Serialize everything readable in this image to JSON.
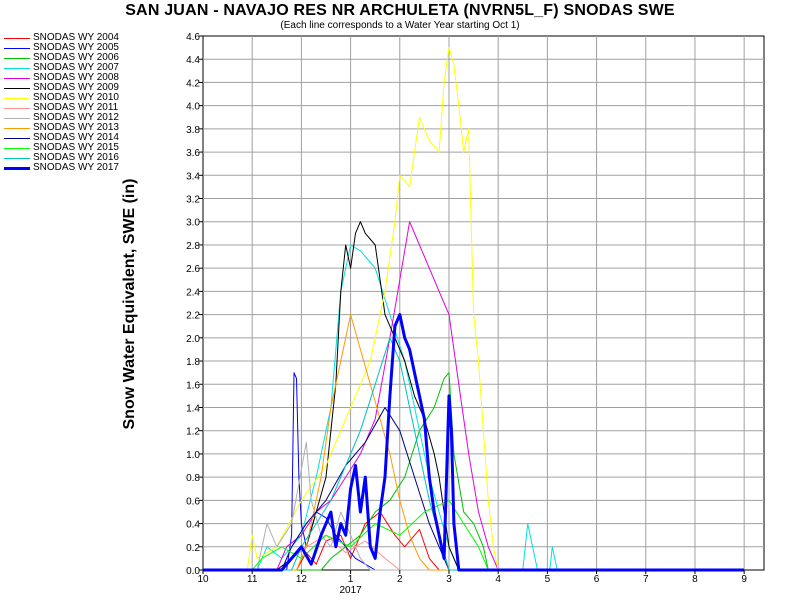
{
  "chart_data": {
    "type": "line",
    "title": "SAN JUAN - NAVAJO RES NR ARCHULETA (NVRN5L_F) SNODAS SWE",
    "subtitle": "(Each line corresponds to a Water Year starting Oct 1)",
    "ylabel": "Snow Water Equivalent, SWE (in)",
    "xlabel": "",
    "x_axis_year_label": "2017",
    "ylim": [
      0,
      4.6
    ],
    "y_ticks": [
      "0.0",
      "0.2",
      "0.4",
      "0.6",
      "0.8",
      "1.0",
      "1.2",
      "1.4",
      "1.6",
      "1.8",
      "2.0",
      "2.2",
      "2.4",
      "2.6",
      "2.8",
      "3.0",
      "3.2",
      "3.4",
      "3.6",
      "3.8",
      "4.0",
      "4.2",
      "4.4",
      "4.6"
    ],
    "x_range": [
      10,
      21
    ],
    "x_ticks": [
      {
        "v": 10,
        "label": "10"
      },
      {
        "v": 11,
        "label": "11"
      },
      {
        "v": 12,
        "label": "12"
      },
      {
        "v": 13,
        "label": "1"
      },
      {
        "v": 14,
        "label": "2"
      },
      {
        "v": 15,
        "label": "3"
      },
      {
        "v": 16,
        "label": "4"
      },
      {
        "v": 17,
        "label": "5"
      },
      {
        "v": 18,
        "label": "6"
      },
      {
        "v": 19,
        "label": "7"
      },
      {
        "v": 20,
        "label": "8"
      },
      {
        "v": 21,
        "label": "9"
      }
    ],
    "grid": true,
    "legend_position": "left",
    "series": [
      {
        "name": "SNODAS WY 2004",
        "color": "#ff0000",
        "width": 1,
        "points": [
          [
            10,
            0
          ],
          [
            11.9,
            0
          ],
          [
            12.1,
            0.15
          ],
          [
            12.3,
            0.05
          ],
          [
            12.5,
            0.25
          ],
          [
            12.8,
            0.3
          ],
          [
            13.0,
            0.1
          ],
          [
            13.3,
            0.4
          ],
          [
            13.6,
            0.5
          ],
          [
            13.9,
            0.3
          ],
          [
            14.1,
            0.2
          ],
          [
            14.4,
            0.35
          ],
          [
            14.6,
            0.1
          ],
          [
            14.8,
            0
          ],
          [
            21,
            0
          ]
        ]
      },
      {
        "name": "SNODAS WY 2005",
        "color": "#0000ff",
        "width": 1,
        "points": [
          [
            10,
            0
          ],
          [
            11.7,
            0
          ],
          [
            11.8,
            0.3
          ],
          [
            11.85,
            1.7
          ],
          [
            11.9,
            1.65
          ],
          [
            11.95,
            0.8
          ],
          [
            12.0,
            0.4
          ],
          [
            12.1,
            0.2
          ],
          [
            12.3,
            0.5
          ],
          [
            12.5,
            0.45
          ],
          [
            12.7,
            0.3
          ],
          [
            12.9,
            0.2
          ],
          [
            13.1,
            0.1
          ],
          [
            13.3,
            0.05
          ],
          [
            13.5,
            0
          ],
          [
            21,
            0
          ]
        ]
      },
      {
        "name": "SNODAS WY 2006",
        "color": "#00c000",
        "width": 1,
        "points": [
          [
            10,
            0
          ],
          [
            12.4,
            0
          ],
          [
            12.6,
            0.1
          ],
          [
            12.9,
            0.2
          ],
          [
            13.2,
            0.3
          ],
          [
            13.5,
            0.5
          ],
          [
            13.8,
            0.6
          ],
          [
            14.1,
            0.8
          ],
          [
            14.4,
            1.2
          ],
          [
            14.7,
            1.4
          ],
          [
            14.9,
            1.65
          ],
          [
            15.0,
            1.7
          ],
          [
            15.1,
            1.0
          ],
          [
            15.3,
            0.5
          ],
          [
            15.5,
            0.4
          ],
          [
            15.7,
            0.2
          ],
          [
            15.8,
            0
          ],
          [
            21,
            0
          ]
        ]
      },
      {
        "name": "SNODAS WY 2007",
        "color": "#00e0e0",
        "width": 1,
        "points": [
          [
            10,
            0
          ],
          [
            11.1,
            0
          ],
          [
            11.3,
            0.2
          ],
          [
            11.6,
            0.1
          ],
          [
            12.0,
            0.3
          ],
          [
            12.3,
            0.8
          ],
          [
            12.6,
            1.4
          ],
          [
            12.8,
            2.4
          ],
          [
            13.0,
            2.8
          ],
          [
            13.2,
            2.75
          ],
          [
            13.5,
            2.6
          ],
          [
            13.8,
            2.2
          ],
          [
            14.1,
            1.8
          ],
          [
            14.4,
            1.2
          ],
          [
            14.6,
            0.8
          ],
          [
            14.8,
            0.5
          ],
          [
            15.0,
            0.2
          ],
          [
            15.2,
            0
          ],
          [
            16.5,
            0
          ],
          [
            16.6,
            0.4
          ],
          [
            16.7,
            0.2
          ],
          [
            16.8,
            0
          ],
          [
            17.05,
            0
          ],
          [
            17.1,
            0.2
          ],
          [
            17.2,
            0
          ],
          [
            21,
            0
          ]
        ]
      },
      {
        "name": "SNODAS WY 2008",
        "color": "#e000e0",
        "width": 1,
        "points": [
          [
            10,
            0
          ],
          [
            11.5,
            0
          ],
          [
            11.7,
            0.2
          ],
          [
            12.0,
            0.3
          ],
          [
            12.3,
            0.5
          ],
          [
            12.6,
            0.6
          ],
          [
            12.9,
            0.8
          ],
          [
            13.2,
            1.0
          ],
          [
            13.5,
            1.3
          ],
          [
            13.8,
            2.0
          ],
          [
            14.0,
            2.5
          ],
          [
            14.2,
            3.0
          ],
          [
            14.4,
            2.8
          ],
          [
            14.6,
            2.6
          ],
          [
            14.8,
            2.4
          ],
          [
            15.0,
            2.2
          ],
          [
            15.2,
            1.6
          ],
          [
            15.4,
            1.0
          ],
          [
            15.6,
            0.5
          ],
          [
            15.8,
            0.2
          ],
          [
            16.0,
            0
          ],
          [
            21,
            0
          ]
        ]
      },
      {
        "name": "SNODAS WY 2009",
        "color": "#000000",
        "width": 1,
        "points": [
          [
            10,
            0
          ],
          [
            11.5,
            0
          ],
          [
            11.8,
            0.1
          ],
          [
            12.1,
            0.2
          ],
          [
            12.3,
            0.5
          ],
          [
            12.5,
            0.8
          ],
          [
            12.7,
            1.6
          ],
          [
            12.8,
            2.4
          ],
          [
            12.9,
            2.8
          ],
          [
            13.0,
            2.6
          ],
          [
            13.1,
            2.9
          ],
          [
            13.2,
            3.0
          ],
          [
            13.3,
            2.9
          ],
          [
            13.5,
            2.8
          ],
          [
            13.7,
            2.2
          ],
          [
            13.9,
            2.0
          ],
          [
            14.1,
            1.8
          ],
          [
            14.3,
            1.5
          ],
          [
            14.5,
            1.3
          ],
          [
            14.7,
            1.0
          ],
          [
            14.8,
            0.8
          ],
          [
            14.9,
            0.5
          ],
          [
            15.0,
            0.2
          ],
          [
            15.2,
            0
          ],
          [
            21,
            0
          ]
        ]
      },
      {
        "name": "SNODAS WY 2010",
        "color": "#ffff00",
        "width": 1,
        "points": [
          [
            10,
            0
          ],
          [
            10.9,
            0
          ],
          [
            11.0,
            0.3
          ],
          [
            11.1,
            0.1
          ],
          [
            11.5,
            0.2
          ],
          [
            12.0,
            0.6
          ],
          [
            12.5,
            0.9
          ],
          [
            13.0,
            1.4
          ],
          [
            13.4,
            1.8
          ],
          [
            13.7,
            2.4
          ],
          [
            13.9,
            3.0
          ],
          [
            14.0,
            3.4
          ],
          [
            14.2,
            3.3
          ],
          [
            14.4,
            3.9
          ],
          [
            14.6,
            3.7
          ],
          [
            14.8,
            3.6
          ],
          [
            14.9,
            4.2
          ],
          [
            15.0,
            4.5
          ],
          [
            15.1,
            4.35
          ],
          [
            15.2,
            4.0
          ],
          [
            15.3,
            3.6
          ],
          [
            15.4,
            3.8
          ],
          [
            15.5,
            2.2
          ],
          [
            15.6,
            1.8
          ],
          [
            15.7,
            1.2
          ],
          [
            15.8,
            0.6
          ],
          [
            15.9,
            0.2
          ],
          [
            16.0,
            0
          ],
          [
            21,
            0
          ]
        ]
      },
      {
        "name": "SNODAS WY 2011",
        "color": "#ff9090",
        "width": 1,
        "points": [
          [
            10,
            0
          ],
          [
            11.6,
            0
          ],
          [
            11.8,
            0.1
          ],
          [
            12.1,
            0.2
          ],
          [
            12.5,
            0.3
          ],
          [
            12.9,
            0.15
          ],
          [
            13.3,
            0.25
          ],
          [
            13.7,
            0.1
          ],
          [
            14.0,
            0
          ],
          [
            21,
            0
          ]
        ]
      },
      {
        "name": "SNODAS WY 2012",
        "color": "#b0b0b0",
        "width": 1,
        "points": [
          [
            10,
            0
          ],
          [
            11.1,
            0
          ],
          [
            11.3,
            0.4
          ],
          [
            11.5,
            0.2
          ],
          [
            11.8,
            0.4
          ],
          [
            12.1,
            1.1
          ],
          [
            12.2,
            0.6
          ],
          [
            12.4,
            0.3
          ],
          [
            12.6,
            0.2
          ],
          [
            12.8,
            0.5
          ],
          [
            13.0,
            0.3
          ],
          [
            13.2,
            0.1
          ],
          [
            13.4,
            0
          ],
          [
            21,
            0
          ]
        ]
      },
      {
        "name": "SNODAS WY 2013",
        "color": "#ff9900",
        "width": 1,
        "points": [
          [
            10,
            0
          ],
          [
            11.9,
            0
          ],
          [
            12.1,
            0.2
          ],
          [
            12.4,
            0.8
          ],
          [
            12.6,
            1.4
          ],
          [
            12.8,
            1.8
          ],
          [
            13.0,
            2.2
          ],
          [
            13.2,
            1.9
          ],
          [
            13.4,
            1.6
          ],
          [
            13.6,
            1.3
          ],
          [
            13.8,
            1.0
          ],
          [
            14.0,
            0.6
          ],
          [
            14.2,
            0.3
          ],
          [
            14.4,
            0.1
          ],
          [
            14.6,
            0
          ],
          [
            21,
            0
          ]
        ]
      },
      {
        "name": "SNODAS WY 2014",
        "color": "#000080",
        "width": 1,
        "points": [
          [
            10,
            0
          ],
          [
            11.6,
            0
          ],
          [
            11.8,
            0.2
          ],
          [
            12.1,
            0.4
          ],
          [
            12.5,
            0.6
          ],
          [
            12.9,
            0.9
          ],
          [
            13.3,
            1.1
          ],
          [
            13.7,
            1.4
          ],
          [
            14.0,
            1.2
          ],
          [
            14.3,
            0.8
          ],
          [
            14.6,
            0.4
          ],
          [
            14.8,
            0.2
          ],
          [
            15.0,
            0
          ],
          [
            21,
            0
          ]
        ]
      },
      {
        "name": "SNODAS WY 2015",
        "color": "#00ff00",
        "width": 1,
        "points": [
          [
            10,
            0
          ],
          [
            11.0,
            0
          ],
          [
            11.2,
            0.1
          ],
          [
            11.6,
            0.2
          ],
          [
            12.0,
            0.1
          ],
          [
            12.5,
            0.3
          ],
          [
            13.0,
            0.2
          ],
          [
            13.5,
            0.4
          ],
          [
            14.0,
            0.3
          ],
          [
            14.5,
            0.5
          ],
          [
            15.0,
            0.6
          ],
          [
            15.3,
            0.4
          ],
          [
            15.6,
            0.2
          ],
          [
            15.8,
            0
          ],
          [
            21,
            0
          ]
        ]
      },
      {
        "name": "SNODAS WY 2016",
        "color": "#00c0c0",
        "width": 1,
        "points": [
          [
            10,
            0
          ],
          [
            11.8,
            0
          ],
          [
            12.0,
            0.2
          ],
          [
            12.3,
            0.4
          ],
          [
            12.6,
            0.6
          ],
          [
            12.9,
            0.9
          ],
          [
            13.2,
            1.2
          ],
          [
            13.5,
            1.6
          ],
          [
            13.8,
            2.0
          ],
          [
            14.0,
            1.8
          ],
          [
            14.2,
            1.4
          ],
          [
            14.4,
            1.0
          ],
          [
            14.6,
            0.6
          ],
          [
            14.8,
            0.3
          ],
          [
            15.0,
            0
          ],
          [
            21,
            0
          ]
        ]
      },
      {
        "name": "SNODAS WY 2017",
        "color": "#0000ff",
        "width": 3,
        "points": [
          [
            10,
            0
          ],
          [
            11.6,
            0
          ],
          [
            11.8,
            0.1
          ],
          [
            12.0,
            0.2
          ],
          [
            12.2,
            0.05
          ],
          [
            12.4,
            0.3
          ],
          [
            12.6,
            0.5
          ],
          [
            12.7,
            0.2
          ],
          [
            12.8,
            0.4
          ],
          [
            12.9,
            0.3
          ],
          [
            13.0,
            0.7
          ],
          [
            13.1,
            0.9
          ],
          [
            13.2,
            0.5
          ],
          [
            13.3,
            0.8
          ],
          [
            13.4,
            0.2
          ],
          [
            13.5,
            0.1
          ],
          [
            13.6,
            0.5
          ],
          [
            13.7,
            0.8
          ],
          [
            13.8,
            1.5
          ],
          [
            13.9,
            2.1
          ],
          [
            14.0,
            2.2
          ],
          [
            14.1,
            2.0
          ],
          [
            14.2,
            1.9
          ],
          [
            14.3,
            1.7
          ],
          [
            14.4,
            1.5
          ],
          [
            14.5,
            1.3
          ],
          [
            14.6,
            0.8
          ],
          [
            14.7,
            0.5
          ],
          [
            14.8,
            0.3
          ],
          [
            14.9,
            0.1
          ],
          [
            15.0,
            1.5
          ],
          [
            15.05,
            1.2
          ],
          [
            15.1,
            0.4
          ],
          [
            15.2,
            0
          ],
          [
            21,
            0
          ]
        ]
      }
    ]
  }
}
